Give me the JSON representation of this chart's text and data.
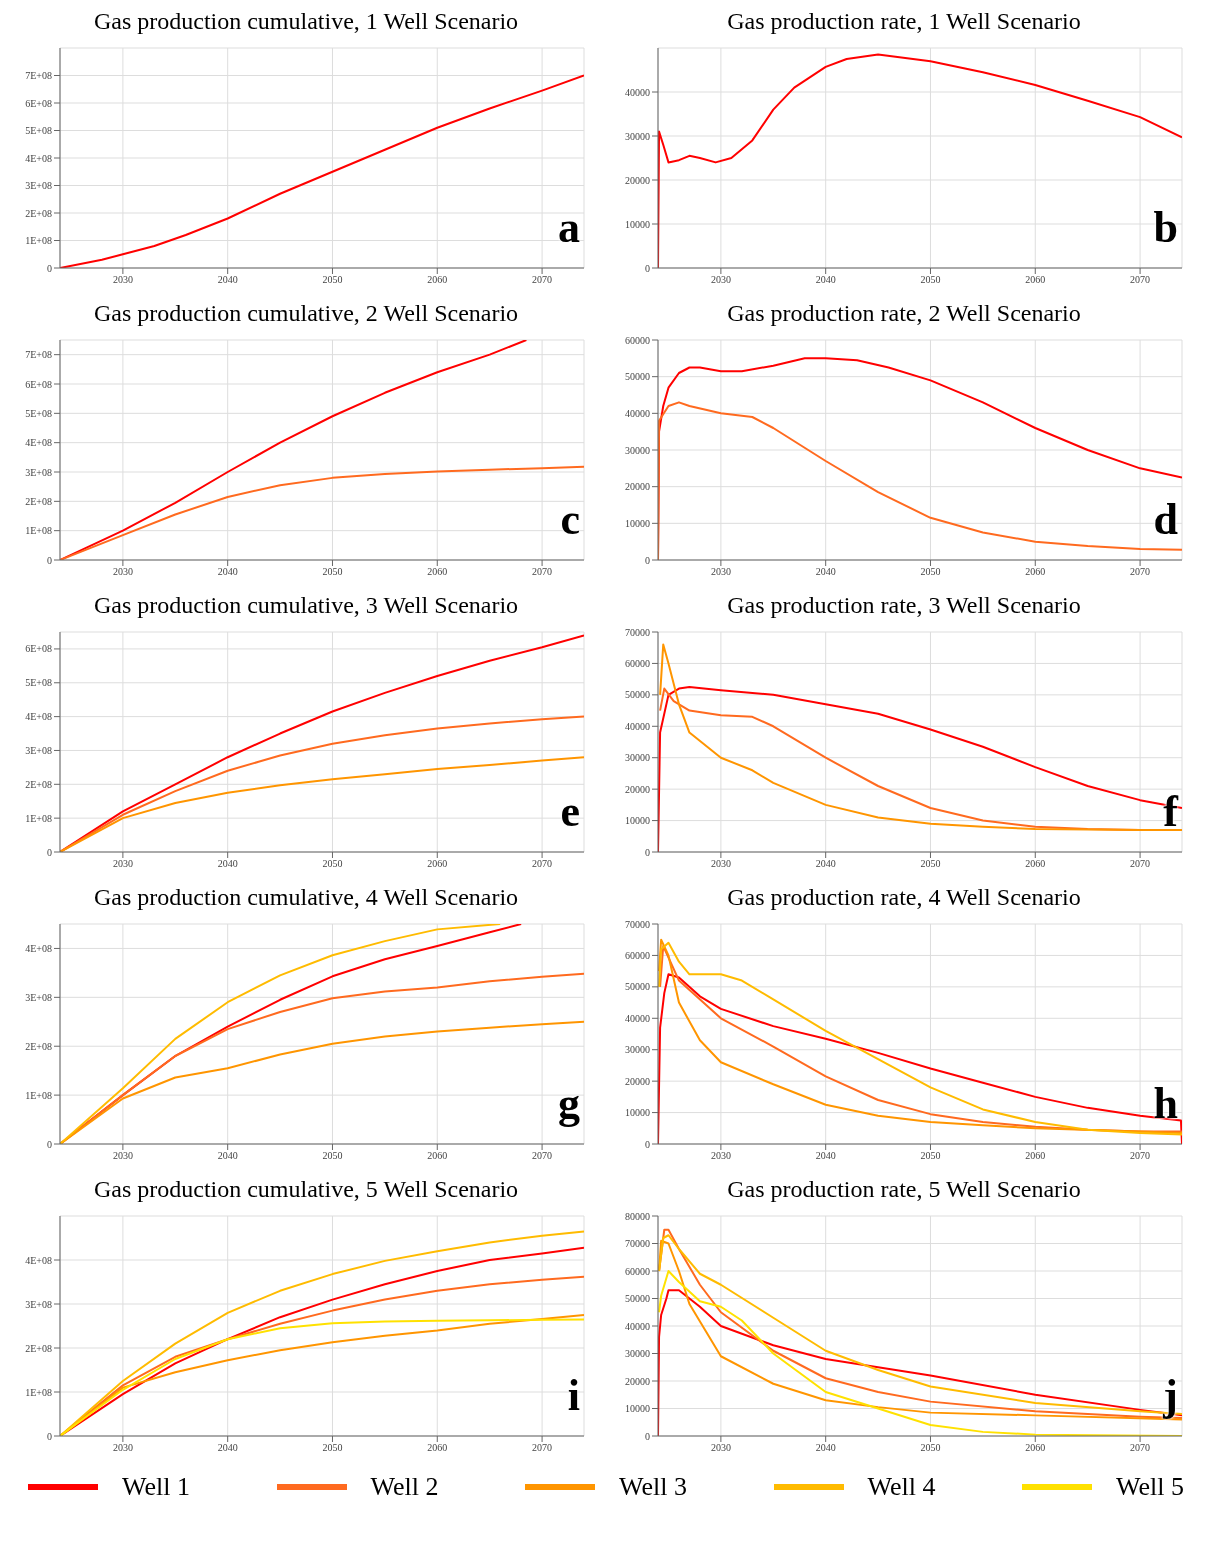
{
  "chart_data": [
    {
      "type": "line",
      "title": "Gas production cumulative, 1 Well Scenario",
      "annotations": [
        "a"
      ],
      "xlim": [
        2024,
        2074
      ],
      "xticks": [
        2030,
        2040,
        2050,
        2060,
        2070
      ],
      "ylim": [
        0,
        800000000.0
      ],
      "yticks": [
        0,
        {
          "value": 100000000.0,
          "label": "1E+08"
        },
        {
          "value": 200000000.0,
          "label": "2E+08"
        },
        {
          "value": 300000000.0,
          "label": "3E+08"
        },
        {
          "value": 400000000.0,
          "label": "4E+08"
        },
        {
          "value": 500000000.0,
          "label": "5E+08"
        },
        {
          "value": 600000000.0,
          "label": "6E+08"
        },
        {
          "value": 700000000.0,
          "label": "7E+08"
        }
      ],
      "grid": true,
      "marker": "none",
      "series": [
        {
          "color": "#ff0000",
          "x": [
            2024,
            2028,
            2030,
            2033,
            2036,
            2040,
            2045,
            2050,
            2055,
            2060,
            2065,
            2070,
            2074
          ],
          "values": [
            0,
            30000000.0,
            50000000.0,
            80000000.0,
            120000000.0,
            180000000.0,
            270000000.0,
            350000000.0,
            430000000.0,
            510000000.0,
            580000000.0,
            645000000.0,
            700000000.0
          ]
        }
      ]
    },
    {
      "type": "line",
      "title": "Gas production rate, 1 Well Scenario",
      "annotations": [
        "b"
      ],
      "xlim": [
        2024,
        2074
      ],
      "xticks": [
        2030,
        2040,
        2050,
        2060,
        2070
      ],
      "ylim": [
        0,
        50000
      ],
      "yticks": [
        0,
        10000,
        20000,
        30000,
        40000
      ],
      "grid": true,
      "marker": "none",
      "series": [
        {
          "color": "#ff0000",
          "x": [
            2024,
            2024.1,
            2024.5,
            2025,
            2026,
            2027,
            2028,
            2029.5,
            2031,
            2033,
            2035,
            2037,
            2040,
            2042,
            2045,
            2050,
            2055,
            2060,
            2065,
            2070,
            2074
          ],
          "values": [
            0,
            31000,
            28000,
            24000,
            24500,
            25500,
            25000,
            24000,
            25000,
            29000,
            36000,
            41000,
            45700,
            47500,
            48500,
            47000,
            44500,
            41600,
            38000,
            34300,
            29700
          ]
        }
      ]
    },
    {
      "type": "line",
      "title": "Gas production cumulative, 2 Well Scenario",
      "annotations": [
        "c"
      ],
      "xlim": [
        2024,
        2074
      ],
      "xticks": [
        2030,
        2040,
        2050,
        2060,
        2070
      ],
      "ylim": [
        0,
        750000000.0
      ],
      "yticks": [
        0,
        {
          "value": 100000000.0,
          "label": "1E+08"
        },
        {
          "value": 200000000.0,
          "label": "2E+08"
        },
        {
          "value": 300000000.0,
          "label": "3E+08"
        },
        {
          "value": 400000000.0,
          "label": "4E+08"
        },
        {
          "value": 500000000.0,
          "label": "5E+08"
        },
        {
          "value": 600000000.0,
          "label": "6E+08"
        },
        {
          "value": 700000000.0,
          "label": "7E+08"
        }
      ],
      "grid": true,
      "marker": "none",
      "series": [
        {
          "color": "#ff0000",
          "x": [
            2024,
            2030,
            2035,
            2040,
            2045,
            2050,
            2055,
            2060,
            2065,
            2068.5
          ],
          "values": [
            0,
            100000000.0,
            195000000.0,
            300000000.0,
            400000000.0,
            490000000.0,
            570000000.0,
            640000000.0,
            700000000.0,
            750000000.0
          ]
        },
        {
          "color": "#ff6a1f",
          "x": [
            2024,
            2030,
            2035,
            2040,
            2045,
            2050,
            2055,
            2060,
            2065,
            2070,
            2074
          ],
          "values": [
            0,
            85000000.0,
            155000000.0,
            215000000.0,
            255000000.0,
            280000000.0,
            293000000.0,
            302000000.0,
            308000000.0,
            313000000.0,
            318000000.0
          ]
        }
      ]
    },
    {
      "type": "line",
      "title": "Gas production rate, 2 Well Scenario",
      "annotations": [
        "d"
      ],
      "xlim": [
        2024,
        2074
      ],
      "xticks": [
        2030,
        2040,
        2050,
        2060,
        2070
      ],
      "ylim": [
        0,
        60000
      ],
      "yticks": [
        0,
        10000,
        20000,
        30000,
        40000,
        50000,
        60000
      ],
      "grid": true,
      "marker": "none",
      "series": [
        {
          "color": "#ff0000",
          "x": [
            2024,
            2024.1,
            2024.5,
            2025,
            2026,
            2027,
            2028,
            2030,
            2032,
            2035,
            2038,
            2040,
            2043,
            2046,
            2050,
            2055,
            2060,
            2065,
            2070,
            2074
          ],
          "values": [
            0,
            35000,
            42000,
            47000,
            51000,
            52500,
            52500,
            51500,
            51500,
            53000,
            55000,
            55000,
            54500,
            52500,
            49000,
            43000,
            36000,
            30000,
            25000,
            22500
          ]
        },
        {
          "color": "#ff6a1f",
          "x": [
            2024,
            2024.1,
            2025,
            2026,
            2027,
            2030,
            2033,
            2035,
            2040,
            2045,
            2050,
            2055,
            2060,
            2065,
            2070,
            2074
          ],
          "values": [
            0,
            38000,
            42000,
            43000,
            42000,
            40000,
            39000,
            36000,
            27000,
            18500,
            11500,
            7500,
            5000,
            3800,
            3000,
            2800
          ]
        }
      ]
    },
    {
      "type": "line",
      "title": "Gas production cumulative, 3 Well Scenario",
      "annotations": [
        "e"
      ],
      "xlim": [
        2024,
        2074
      ],
      "xticks": [
        2030,
        2040,
        2050,
        2060,
        2070
      ],
      "ylim": [
        0,
        650000000.0
      ],
      "yticks": [
        0,
        {
          "value": 100000000.0,
          "label": "1E+08"
        },
        {
          "value": 200000000.0,
          "label": "2E+08"
        },
        {
          "value": 300000000.0,
          "label": "3E+08"
        },
        {
          "value": 400000000.0,
          "label": "4E+08"
        },
        {
          "value": 500000000.0,
          "label": "5E+08"
        },
        {
          "value": 600000000.0,
          "label": "6E+08"
        }
      ],
      "grid": true,
      "marker": "none",
      "series": [
        {
          "color": "#ff0000",
          "x": [
            2024,
            2030,
            2035,
            2040,
            2045,
            2050,
            2055,
            2060,
            2065,
            2070,
            2074
          ],
          "values": [
            0,
            120000000.0,
            200000000.0,
            280000000.0,
            350000000.0,
            415000000.0,
            470000000.0,
            520000000.0,
            565000000.0,
            605000000.0,
            640000000.0
          ]
        },
        {
          "color": "#ff6a1f",
          "x": [
            2024,
            2030,
            2035,
            2040,
            2045,
            2050,
            2055,
            2060,
            2065,
            2070,
            2074
          ],
          "values": [
            0,
            110000000.0,
            180000000.0,
            240000000.0,
            285000000.0,
            320000000.0,
            345000000.0,
            365000000.0,
            380000000.0,
            392000000.0,
            400000000.0
          ]
        },
        {
          "color": "#ff9500",
          "x": [
            2024,
            2030,
            2035,
            2040,
            2045,
            2050,
            2055,
            2060,
            2065,
            2070,
            2074
          ],
          "values": [
            0,
            100000000.0,
            145000000.0,
            175000000.0,
            197000000.0,
            215000000.0,
            230000000.0,
            245000000.0,
            257000000.0,
            270000000.0,
            280000000.0
          ]
        }
      ]
    },
    {
      "type": "line",
      "title": "Gas production rate, 3 Well Scenario",
      "annotations": [
        "f"
      ],
      "xlim": [
        2024,
        2074
      ],
      "xticks": [
        2030,
        2040,
        2050,
        2060,
        2070
      ],
      "ylim": [
        0,
        70000
      ],
      "yticks": [
        0,
        10000,
        20000,
        30000,
        40000,
        50000,
        60000,
        70000
      ],
      "grid": true,
      "marker": "none",
      "series": [
        {
          "color": "#ff0000",
          "x": [
            2024,
            2024.2,
            2025,
            2026,
            2027,
            2030,
            2035,
            2040,
            2045,
            2050,
            2055,
            2060,
            2065,
            2070,
            2074
          ],
          "values": [
            0,
            38000,
            50000,
            52000,
            52500,
            51500,
            50000,
            47000,
            44000,
            39000,
            33500,
            27000,
            21000,
            16500,
            14000
          ]
        },
        {
          "color": "#ff6a1f",
          "x": [
            2024.2,
            2024.6,
            2025.5,
            2027,
            2030,
            2033,
            2035,
            2040,
            2045,
            2050,
            2055,
            2060,
            2065,
            2070,
            2074
          ],
          "values": [
            45000,
            52000,
            48000,
            45000,
            43500,
            43000,
            40000,
            30000,
            21000,
            14000,
            10000,
            8000,
            7300,
            7000,
            7000
          ]
        },
        {
          "color": "#ff9500",
          "x": [
            2024.2,
            2024.5,
            2025,
            2026,
            2027,
            2030,
            2033,
            2035,
            2040,
            2045,
            2050,
            2055,
            2060,
            2070,
            2074
          ],
          "values": [
            50000,
            66000,
            60000,
            47000,
            38000,
            30000,
            26000,
            22000,
            15000,
            11000,
            9000,
            8000,
            7300,
            7000,
            7000
          ]
        }
      ]
    },
    {
      "type": "line",
      "title": "Gas production cumulative, 4 Well Scenario",
      "annotations": [
        "g"
      ],
      "xlim": [
        2024,
        2074
      ],
      "xticks": [
        2030,
        2040,
        2050,
        2060,
        2070
      ],
      "ylim": [
        0,
        450000000.0
      ],
      "yticks": [
        0,
        {
          "value": 100000000.0,
          "label": "1E+08"
        },
        {
          "value": 200000000.0,
          "label": "2E+08"
        },
        {
          "value": 300000000.0,
          "label": "3E+08"
        },
        {
          "value": 400000000.0,
          "label": "4E+08"
        }
      ],
      "grid": true,
      "marker": "none",
      "series": [
        {
          "color": "#ff0000",
          "x": [
            2024,
            2030,
            2035,
            2040,
            2045,
            2050,
            2055,
            2060,
            2065,
            2068
          ],
          "values": [
            0,
            100000000.0,
            180000000.0,
            240000000.0,
            295000000.0,
            343000000.0,
            378000000.0,
            405000000.0,
            433000000.0,
            450000000.0
          ]
        },
        {
          "color": "#ff6a1f",
          "x": [
            2024,
            2030,
            2035,
            2040,
            2045,
            2050,
            2055,
            2060,
            2065,
            2070,
            2074
          ],
          "values": [
            0,
            100000000.0,
            180000000.0,
            235000000.0,
            270000000.0,
            298000000.0,
            312000000.0,
            320000000.0,
            333000000.0,
            342000000.0,
            348000000.0
          ]
        },
        {
          "color": "#ff9500",
          "x": [
            2024,
            2030,
            2035,
            2040,
            2045,
            2050,
            2055,
            2060,
            2065,
            2070,
            2074
          ],
          "values": [
            0,
            93000000.0,
            136000000.0,
            155000000.0,
            183000000.0,
            205000000.0,
            220000000.0,
            230000000.0,
            238000000.0,
            245000000.0,
            250000000.0
          ]
        },
        {
          "color": "#ffbb00",
          "x": [
            2024,
            2030,
            2035,
            2040,
            2045,
            2050,
            2055,
            2060,
            2066
          ],
          "values": [
            0,
            114000000.0,
            215000000.0,
            290000000.0,
            345000000.0,
            386000000.0,
            415000000.0,
            439000000.0,
            450000000.0
          ]
        }
      ]
    },
    {
      "type": "line",
      "title": "Gas production rate, 4 Well Scenario",
      "annotations": [
        "h"
      ],
      "xlim": [
        2024,
        2074
      ],
      "xticks": [
        2030,
        2040,
        2050,
        2060,
        2070
      ],
      "ylim": [
        0,
        70000
      ],
      "yticks": [
        0,
        10000,
        20000,
        30000,
        40000,
        50000,
        60000,
        70000
      ],
      "grid": true,
      "marker": "none",
      "series": [
        {
          "color": "#ff0000",
          "x": [
            2024,
            2024.2,
            2024.6,
            2025,
            2026,
            2028,
            2030,
            2035,
            2040,
            2045,
            2050,
            2055,
            2060,
            2065,
            2070,
            2073.9,
            2074
          ],
          "values": [
            0,
            37000,
            48000,
            54000,
            53000,
            47000,
            43000,
            37500,
            33500,
            29000,
            24000,
            19500,
            15000,
            11500,
            9000,
            7500,
            0
          ]
        },
        {
          "color": "#ff6a1f",
          "x": [
            2024.2,
            2024.5,
            2026,
            2030,
            2035,
            2040,
            2045,
            2050,
            2055,
            2060,
            2065,
            2070,
            2074
          ],
          "values": [
            50000,
            63000,
            52000,
            40000,
            31000,
            21500,
            14000,
            9500,
            7000,
            5500,
            4500,
            4000,
            4000
          ]
        },
        {
          "color": "#ff9500",
          "x": [
            2024.1,
            2024.3,
            2025,
            2026,
            2028,
            2030,
            2035,
            2040,
            2045,
            2050,
            2055,
            2060,
            2070,
            2074
          ],
          "values": [
            55000,
            65000,
            60000,
            45000,
            33000,
            26000,
            19000,
            12500,
            9000,
            7000,
            6000,
            5000,
            4000,
            3500
          ]
        },
        {
          "color": "#ffbb00",
          "x": [
            2024.1,
            2024.3,
            2025,
            2026,
            2027,
            2030,
            2032,
            2035,
            2040,
            2045,
            2050,
            2055,
            2060,
            2065,
            2070,
            2074
          ],
          "values": [
            50000,
            62000,
            64000,
            58000,
            54000,
            54000,
            52000,
            46000,
            36000,
            27000,
            18000,
            11000,
            7000,
            4500,
            3500,
            3000
          ]
        }
      ]
    },
    {
      "type": "line",
      "title": "Gas production cumulative, 5 Well Scenario",
      "annotations": [
        "i"
      ],
      "xlim": [
        2024,
        2074
      ],
      "xticks": [
        2030,
        2040,
        2050,
        2060,
        2070
      ],
      "ylim": [
        0,
        500000000.0
      ],
      "yticks": [
        0,
        {
          "value": 100000000.0,
          "label": "1E+08"
        },
        {
          "value": 200000000.0,
          "label": "2E+08"
        },
        {
          "value": 300000000.0,
          "label": "3E+08"
        },
        {
          "value": 400000000.0,
          "label": "4E+08"
        }
      ],
      "grid": true,
      "marker": "none",
      "series": [
        {
          "color": "#ff0000",
          "x": [
            2024,
            2030,
            2035,
            2040,
            2045,
            2050,
            2055,
            2060,
            2065,
            2070,
            2074
          ],
          "values": [
            0,
            95000000.0,
            165000000.0,
            220000000.0,
            270000000.0,
            310000000.0,
            345000000.0,
            375000000.0,
            400000000.0,
            415000000.0,
            428000000.0
          ]
        },
        {
          "color": "#ff6a1f",
          "x": [
            2024,
            2030,
            2035,
            2040,
            2045,
            2050,
            2055,
            2060,
            2065,
            2070,
            2074
          ],
          "values": [
            0,
            115000000.0,
            180000000.0,
            220000000.0,
            255000000.0,
            285000000.0,
            310000000.0,
            330000000.0,
            345000000.0,
            355000000.0,
            362000000.0
          ]
        },
        {
          "color": "#ff9500",
          "x": [
            2024,
            2030,
            2035,
            2040,
            2045,
            2050,
            2055,
            2060,
            2065,
            2070,
            2074
          ],
          "values": [
            0,
            110000000.0,
            145000000.0,
            172000000.0,
            195000000.0,
            213000000.0,
            228000000.0,
            240000000.0,
            255000000.0,
            266000000.0,
            275000000.0
          ]
        },
        {
          "color": "#ffbb00",
          "x": [
            2024,
            2030,
            2035,
            2040,
            2045,
            2050,
            2055,
            2060,
            2065,
            2070,
            2074
          ],
          "values": [
            0,
            125000000.0,
            210000000.0,
            280000000.0,
            330000000.0,
            368000000.0,
            398000000.0,
            420000000.0,
            440000000.0,
            455000000.0,
            465000000.0
          ]
        },
        {
          "color": "#ffe100",
          "x": [
            2024,
            2030,
            2035,
            2040,
            2045,
            2050,
            2055,
            2060,
            2065,
            2070,
            2074
          ],
          "values": [
            0,
            105000000.0,
            175000000.0,
            220000000.0,
            245000000.0,
            256000000.0,
            260000000.0,
            262000000.0,
            263000000.0,
            264000000.0,
            265000000.0
          ]
        }
      ]
    },
    {
      "type": "line",
      "title": "Gas production rate, 5 Well Scenario",
      "annotations": [
        "j"
      ],
      "xlim": [
        2024,
        2074
      ],
      "xticks": [
        2030,
        2040,
        2050,
        2060,
        2070
      ],
      "ylim": [
        0,
        80000
      ],
      "yticks": [
        0,
        10000,
        20000,
        30000,
        40000,
        50000,
        60000,
        70000,
        80000
      ],
      "grid": true,
      "marker": "none",
      "legend": "bottom",
      "series": [
        {
          "name": "Well 1",
          "color": "#ff0000",
          "x": [
            2024,
            2024.1,
            2024.3,
            2024.8,
            2025,
            2026,
            2028,
            2030,
            2035,
            2040,
            2045,
            2050,
            2060,
            2070,
            2074
          ],
          "values": [
            0,
            36000,
            44000,
            50000,
            53000,
            53000,
            47000,
            40000,
            33000,
            28000,
            25000,
            22000,
            15000,
            9500,
            7500
          ]
        },
        {
          "name": "Well 2",
          "color": "#ff6a1f",
          "x": [
            2024.1,
            2024.6,
            2025,
            2026,
            2028,
            2030,
            2035,
            2040,
            2045,
            2050,
            2060,
            2070,
            2074
          ],
          "values": [
            60000,
            75000,
            75000,
            68000,
            55000,
            45000,
            31000,
            21000,
            16000,
            12500,
            9000,
            7000,
            6500
          ]
        },
        {
          "name": "Well 3",
          "color": "#ff9500",
          "x": [
            2024.1,
            2024.3,
            2025,
            2026,
            2027,
            2030,
            2035,
            2040,
            2045,
            2050,
            2060,
            2074
          ],
          "values": [
            60000,
            71000,
            70000,
            60000,
            48000,
            29000,
            19000,
            13000,
            10500,
            8500,
            7500,
            6000
          ]
        },
        {
          "name": "Well 4",
          "color": "#ffbb00",
          "x": [
            2024.1,
            2024.5,
            2025,
            2026,
            2028,
            2030,
            2035,
            2040,
            2045,
            2050,
            2060,
            2070,
            2074
          ],
          "values": [
            60000,
            72000,
            73000,
            68000,
            59000,
            55000,
            43000,
            31000,
            24000,
            18000,
            12000,
            9000,
            8000
          ]
        },
        {
          "name": "Well 5",
          "color": "#ffe100",
          "x": [
            2024.1,
            2024.3,
            2025,
            2026,
            2028,
            2030,
            2032,
            2035,
            2040,
            2045,
            2050,
            2055,
            2060,
            2074
          ],
          "values": [
            45000,
            51000,
            60000,
            56000,
            49000,
            47000,
            42000,
            30000,
            16000,
            10000,
            4000,
            1500,
            500,
            0
          ]
        }
      ]
    }
  ]
}
